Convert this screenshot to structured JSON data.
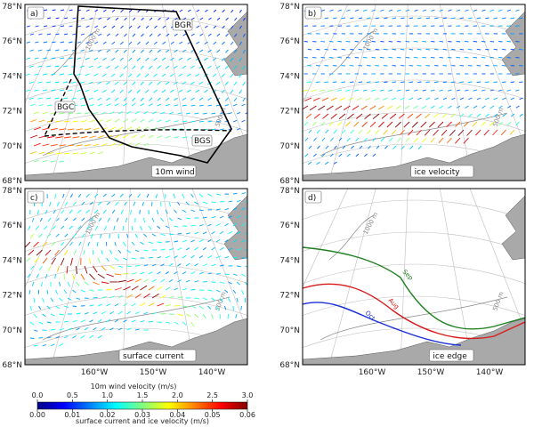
{
  "chart_data": {
    "type": "map-vector-panels",
    "lat_labels": [
      "78°N",
      "76°N",
      "74°N",
      "72°N",
      "70°N",
      "68°N"
    ],
    "lon_labels": [
      "160°W",
      "150°W",
      "140°W"
    ],
    "panels": [
      {
        "tag": "a)",
        "label": "10m wind",
        "region_labels": [
          "BGR",
          "BGC",
          "BGS"
        ],
        "isobath_labels": [
          "1000 m",
          "500 m"
        ]
      },
      {
        "tag": "b)",
        "label": "ice velocity",
        "isobath_labels": [
          "1000 m",
          "500 m"
        ]
      },
      {
        "tag": "c)",
        "label": "surface current",
        "isobath_labels": [
          "1000 m",
          "500 m"
        ]
      },
      {
        "tag": "d)",
        "label": "ice edge",
        "isobath_labels": [
          "1000 m",
          "500 m"
        ],
        "edge_lines": [
          {
            "name": "Sep",
            "color": "#1e7f1e"
          },
          {
            "name": "Aug",
            "color": "#d81b1b"
          },
          {
            "name": "Oct",
            "color": "#1b2fd8"
          }
        ]
      }
    ],
    "colorbar": {
      "title_top": "10m wind velocity (m/s)",
      "ticks_top": [
        "0.0",
        "0.5",
        "1.0",
        "1.5",
        "2.0",
        "2.5",
        "3.0"
      ],
      "title_bottom": "surface current and ice velocity (m/s)",
      "ticks_bottom": [
        "0.00",
        "0.01",
        "0.02",
        "0.03",
        "0.04",
        "0.05",
        "0.06"
      ],
      "colormap": "jet"
    }
  }
}
